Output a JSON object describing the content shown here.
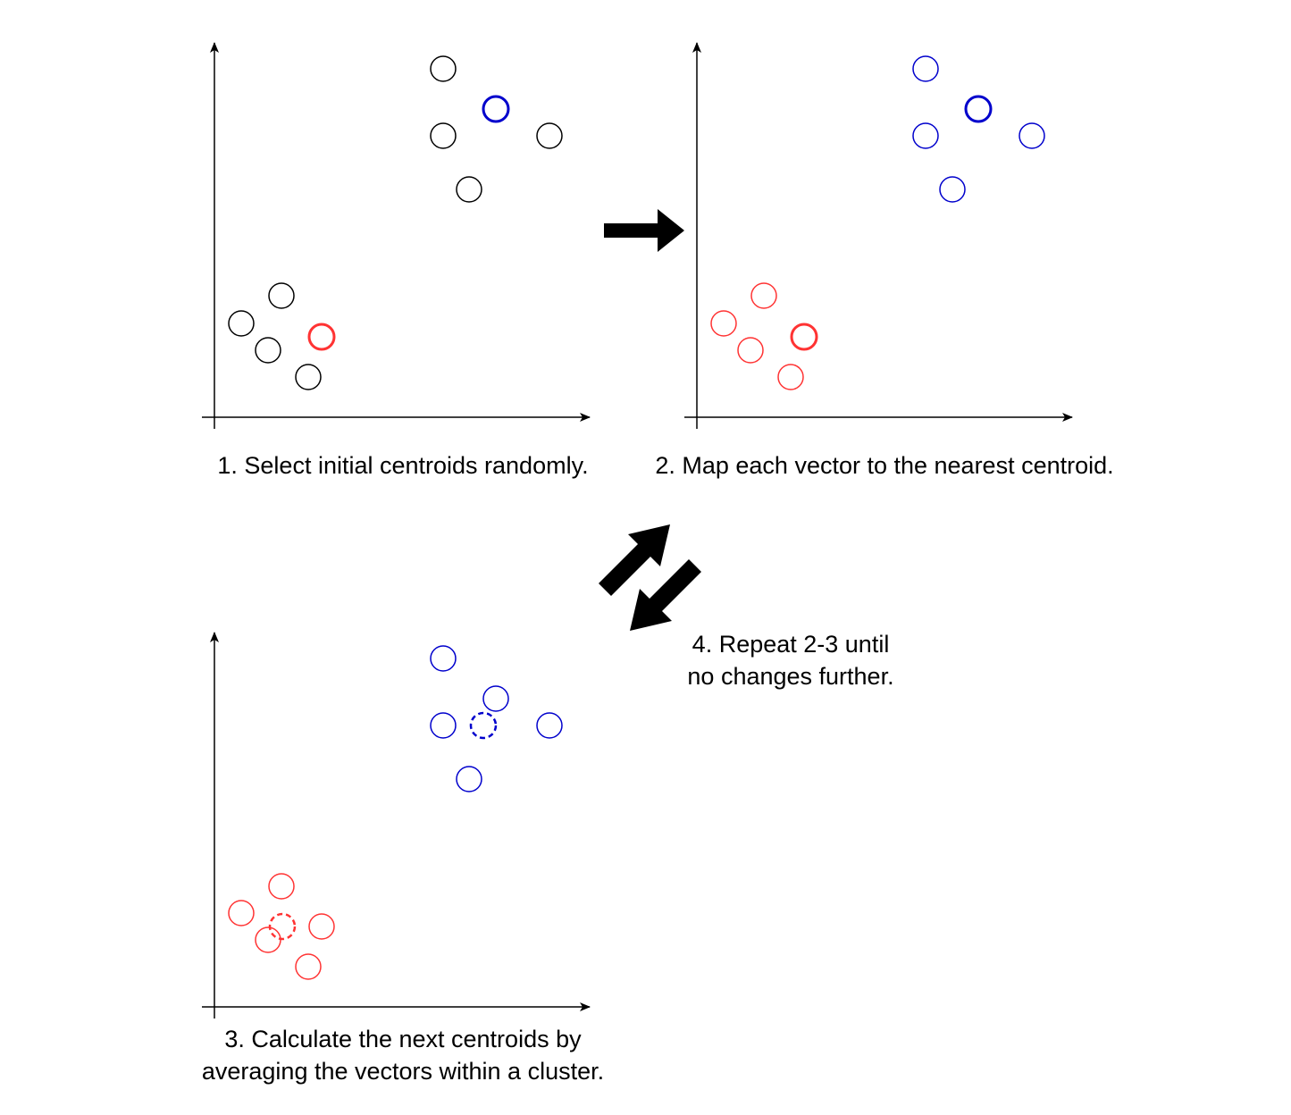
{
  "colors": {
    "unassigned": "#000000",
    "cluster_a": "#ff3333",
    "cluster_b": "#0000cc",
    "axis": "#000000",
    "arrow": "#000000"
  },
  "captions": {
    "step1": "1. Select initial centroids randomly.",
    "step2": "2. Map each vector to the nearest centroid.",
    "step3_line1": "3. Calculate the next centroids by",
    "step3_line2": "averaging the vectors within a cluster.",
    "step4_line1": "4. Repeat 2-3 until",
    "step4_line2": "no changes further."
  },
  "panels": [
    {
      "id": "step1",
      "centroids": [
        "initial",
        "initial"
      ],
      "points_colored": false
    },
    {
      "id": "step2",
      "centroids": [
        "initial",
        "initial"
      ],
      "points_colored": true
    },
    {
      "id": "step3",
      "centroids": [
        "previous",
        "next-dashed"
      ],
      "points_colored": true
    }
  ],
  "icons": [
    "arrow-right-icon",
    "arrow-up-right-icon",
    "arrow-down-left-icon"
  ]
}
